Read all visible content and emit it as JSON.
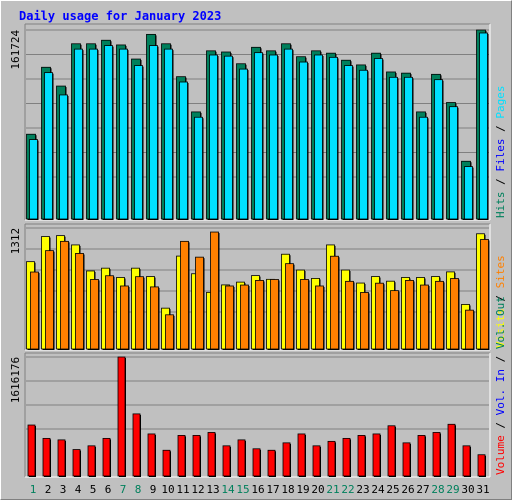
{
  "title": "Daily usage for January 2023",
  "colors": {
    "hits": "#00805c",
    "files": "#0000ff",
    "pages": "#00e0ff",
    "visits": "#ffff00",
    "sites": "#ff8000",
    "kbytes_out": "#00805c",
    "kbytes_in": "#0000ff",
    "volume": "#ff0000",
    "weekend": "#00805c",
    "weekday": "#000000"
  },
  "chart_data": [
    {
      "type": "bar",
      "ymax_label": "161724",
      "ylim": [
        0,
        161724
      ],
      "legend": [
        "Hits",
        "Files",
        "Pages"
      ],
      "legend_colors": [
        "#00805c",
        "#0000ff",
        "#00e0ff"
      ],
      "categories": [
        "1",
        "2",
        "3",
        "4",
        "5",
        "6",
        "7",
        "8",
        "9",
        "10",
        "11",
        "12",
        "13",
        "14",
        "15",
        "16",
        "17",
        "18",
        "19",
        "20",
        "21",
        "22",
        "23",
        "24",
        "25",
        "26",
        "27",
        "28",
        "29",
        "30",
        "31"
      ],
      "weekend_days": [
        "1",
        "7",
        "8",
        "14",
        "15",
        "21",
        "22",
        "28",
        "29"
      ],
      "series": [
        {
          "name": "Hits",
          "values": [
            73000,
            130000,
            114000,
            150000,
            150000,
            153000,
            149000,
            137000,
            158000,
            150000,
            122000,
            92000,
            144000,
            143000,
            133000,
            147000,
            144000,
            150000,
            139000,
            144000,
            142000,
            136000,
            132000,
            142000,
            126000,
            125000,
            92000,
            124000,
            100000,
            50000,
            161724
          ]
        },
        {
          "name": "Pages",
          "values": [
            71000,
            128000,
            109000,
            148000,
            148000,
            151000,
            148000,
            134000,
            151000,
            148000,
            120000,
            90000,
            143000,
            142000,
            131000,
            145000,
            143000,
            148000,
            137000,
            143000,
            141000,
            134000,
            130000,
            140000,
            124000,
            124000,
            90000,
            122000,
            99000,
            48000,
            161724
          ]
        }
      ]
    },
    {
      "type": "bar",
      "ymax_label": "1312",
      "ylim": [
        0,
        1312
      ],
      "legend": [
        "Visits",
        "Sites"
      ],
      "legend_colors": [
        "#ffff00",
        "#ff8000"
      ],
      "categories": [
        "1",
        "2",
        "3",
        "4",
        "5",
        "6",
        "7",
        "8",
        "9",
        "10",
        "11",
        "12",
        "13",
        "14",
        "15",
        "16",
        "17",
        "18",
        "19",
        "20",
        "21",
        "22",
        "23",
        "24",
        "25",
        "26",
        "27",
        "28",
        "29",
        "30",
        "31"
      ],
      "series": [
        {
          "name": "Visits",
          "values": [
            950,
            1220,
            1230,
            1130,
            850,
            880,
            780,
            880,
            790,
            450,
            1010,
            820,
            620,
            700,
            730,
            800,
            760,
            1030,
            860,
            770,
            1130,
            860,
            720,
            790,
            740,
            780,
            780,
            790,
            840,
            490,
            1250
          ]
        },
        {
          "name": "Sites",
          "values": [
            860,
            1090,
            1190,
            1060,
            780,
            820,
            710,
            810,
            700,
            400,
            1190,
            1020,
            1290,
            710,
            720,
            770,
            780,
            950,
            780,
            710,
            1030,
            760,
            640,
            740,
            660,
            770,
            720,
            760,
            790,
            450,
            1210
          ]
        }
      ]
    },
    {
      "type": "bar",
      "ymax_label": "1616176",
      "ylim": [
        0,
        1616176
      ],
      "legend": [
        "Volume",
        "Vol. In",
        "Vol. Out"
      ],
      "legend_colors": [
        "#ff0000",
        "#0000ff",
        "#00805c"
      ],
      "categories": [
        "1",
        "2",
        "3",
        "4",
        "5",
        "6",
        "7",
        "8",
        "9",
        "10",
        "11",
        "12",
        "13",
        "14",
        "15",
        "16",
        "17",
        "18",
        "19",
        "20",
        "21",
        "22",
        "23",
        "24",
        "25",
        "26",
        "27",
        "28",
        "29",
        "30",
        "31"
      ],
      "series": [
        {
          "name": "Volume",
          "values": [
            700000,
            520000,
            500000,
            370000,
            420000,
            520000,
            1616176,
            850000,
            580000,
            360000,
            560000,
            560000,
            600000,
            420000,
            500000,
            380000,
            360000,
            460000,
            580000,
            420000,
            480000,
            520000,
            560000,
            580000,
            690000,
            460000,
            560000,
            600000,
            710000,
            420000,
            300000
          ]
        }
      ]
    }
  ]
}
